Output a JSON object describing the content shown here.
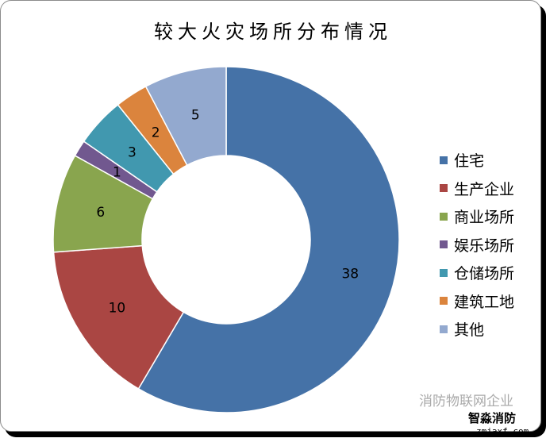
{
  "chart_data": {
    "type": "pie",
    "donut": true,
    "title": "较大火灾场所分布情况",
    "categories": [
      "住宅",
      "生产企业",
      "商业场所",
      "娱乐场所",
      "仓储场所",
      "建筑工地",
      "其他"
    ],
    "values": [
      38,
      10,
      6,
      1,
      3,
      2,
      5
    ],
    "colors": [
      "#4572a7",
      "#aa4643",
      "#89a54e",
      "#71588f",
      "#4198af",
      "#db843d",
      "#93a9cf"
    ],
    "legend_position": "right",
    "data_labels": true
  },
  "watermark": {
    "text": "消防物联网企业",
    "logo_text": "智淼消防",
    "logo_url": "zmjaxf.com"
  }
}
